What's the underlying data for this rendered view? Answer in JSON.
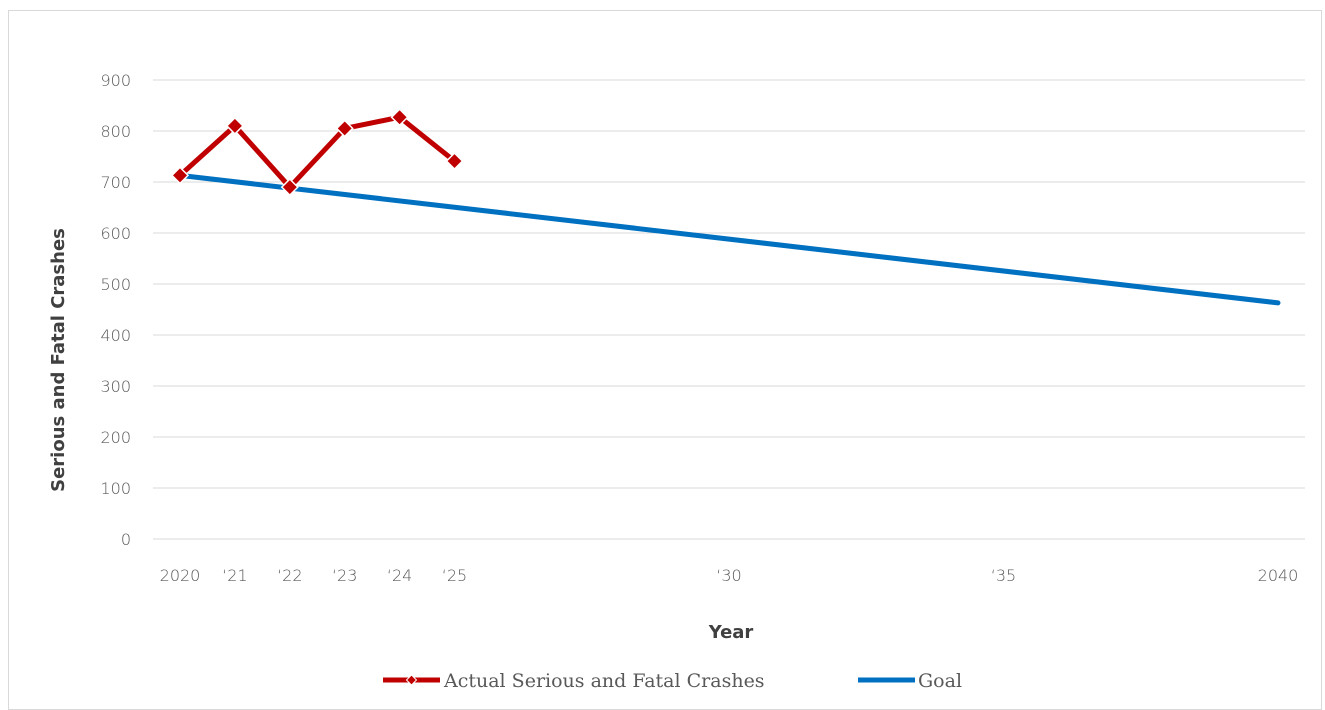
{
  "chart_data": {
    "type": "line",
    "title": "",
    "xlabel": "Year",
    "ylabel": "Serious and Fatal Crashes",
    "xlim": [
      2020,
      2040
    ],
    "ylim": [
      0,
      900
    ],
    "yticks": [
      0,
      100,
      200,
      300,
      400,
      500,
      600,
      700,
      800,
      900
    ],
    "x_tick_labels": [
      {
        "x": 2020,
        "label": "2020"
      },
      {
        "x": 2021,
        "label": "‘21"
      },
      {
        "x": 2022,
        "label": "‘22"
      },
      {
        "x": 2023,
        "label": "‘23"
      },
      {
        "x": 2024,
        "label": "‘24"
      },
      {
        "x": 2025,
        "label": "‘25"
      },
      {
        "x": 2030,
        "label": "‘30"
      },
      {
        "x": 2035,
        "label": "‘35"
      },
      {
        "x": 2040,
        "label": "2040"
      }
    ],
    "grid": true,
    "legend_position": "bottom",
    "series": [
      {
        "name": "Actual Serious and Fatal Crashes",
        "color": "#c00000",
        "marker": "diamond",
        "points": [
          {
            "x": 2020,
            "y": 713
          },
          {
            "x": 2021,
            "y": 810
          },
          {
            "x": 2022,
            "y": 690
          },
          {
            "x": 2023,
            "y": 805
          },
          {
            "x": 2024,
            "y": 827
          },
          {
            "x": 2025,
            "y": 741
          }
        ]
      },
      {
        "name": "Goal",
        "color": "#0070c0",
        "marker": "none",
        "points": [
          {
            "x": 2020,
            "y": 713
          },
          {
            "x": 2040,
            "y": 463
          }
        ]
      }
    ]
  }
}
